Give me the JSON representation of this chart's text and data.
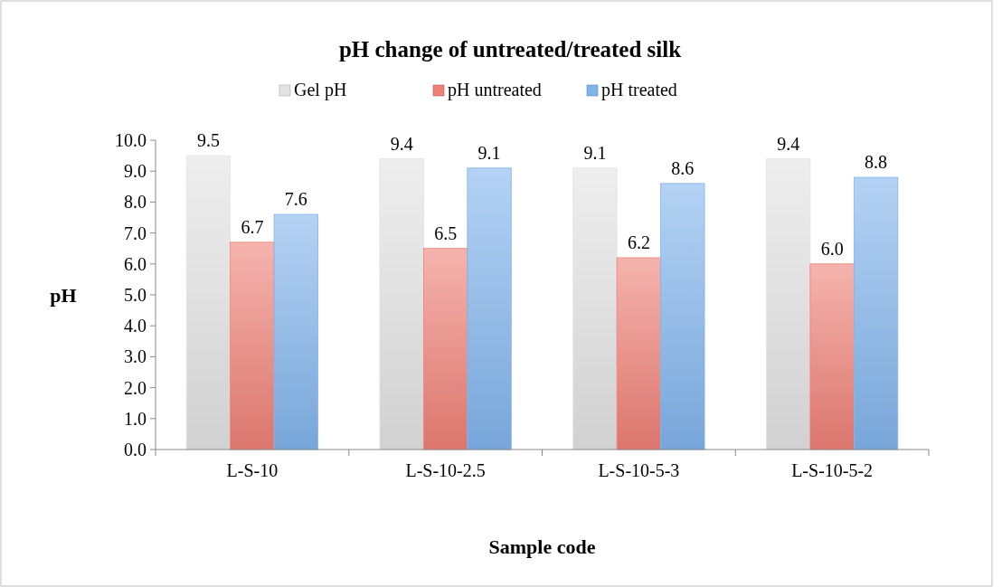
{
  "chart_data": {
    "type": "bar",
    "title": "pH change of untreated/treated silk",
    "xlabel": "Sample code",
    "ylabel": "pH",
    "categories": [
      "L-S-10",
      "L-S-10-2.5",
      "L-S-10-5-3",
      "L-S-10-5-2"
    ],
    "series": [
      {
        "name": "Gel pH",
        "color": "#e3e3e3",
        "values": [
          9.5,
          9.4,
          9.1,
          9.4
        ],
        "value_labels": [
          "9.5",
          "9.4",
          "9.1",
          "9.4"
        ]
      },
      {
        "name": "pH untreated",
        "color": "#ee8077",
        "values": [
          6.7,
          6.5,
          6.2,
          6.0
        ],
        "value_labels": [
          "6.7",
          "6.5",
          "6.2",
          "6.0"
        ]
      },
      {
        "name": "pH treated",
        "color": "#82b4ec",
        "values": [
          7.6,
          9.1,
          8.6,
          8.8
        ],
        "value_labels": [
          "7.6",
          "9.1",
          "8.6",
          "8.8"
        ]
      }
    ],
    "ylim": [
      0,
      10
    ],
    "yticks": [
      {
        "value": 0,
        "label": "0.0"
      },
      {
        "value": 1,
        "label": "1.0"
      },
      {
        "value": 2,
        "label": "2.0"
      },
      {
        "value": 3,
        "label": "3.0"
      },
      {
        "value": 4,
        "label": "4.0"
      },
      {
        "value": 5,
        "label": "5.0"
      },
      {
        "value": 6,
        "label": "6.0"
      },
      {
        "value": 7,
        "label": "7.0"
      },
      {
        "value": 8,
        "label": "8.0"
      },
      {
        "value": 9,
        "label": "9.0"
      },
      {
        "value": 10,
        "label": "10.0"
      }
    ],
    "grid": false,
    "legend": "top"
  }
}
